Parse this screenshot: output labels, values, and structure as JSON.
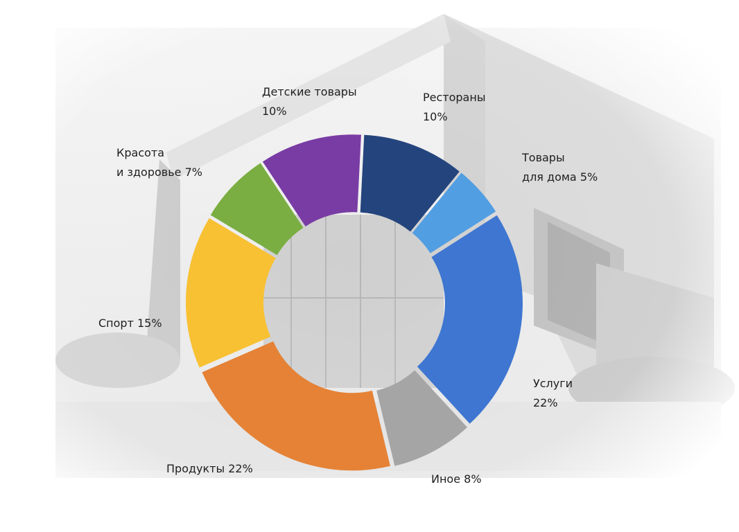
{
  "chart_data": {
    "type": "donut",
    "series": [
      {
        "category": "Рестораны",
        "value": 10,
        "color": "#24447d"
      },
      {
        "category": "Товары для дома",
        "value": 5,
        "color": "#519ee2"
      },
      {
        "category": "Услуги",
        "value": 22,
        "color": "#3e76d1"
      },
      {
        "category": "Иное",
        "value": 8,
        "color": "#a5a5a5"
      },
      {
        "category": "Продукты",
        "value": 22,
        "color": "#e58236"
      },
      {
        "category": "Спорт",
        "value": 15,
        "color": "#f8c033"
      },
      {
        "category": "Красота и здоровье",
        "value": 7,
        "color": "#7aae42"
      },
      {
        "category": "Детские товары",
        "value": 10,
        "color": "#793ca4"
      }
    ]
  },
  "labels": {
    "restaurants": {
      "line1": "Рестораны",
      "line2": "10%"
    },
    "home_goods": {
      "line1": "Товары",
      "line2": "для дома 5%"
    },
    "services": {
      "line1": "Услуги",
      "line2": "22%"
    },
    "other": {
      "line1": "Иное 8%"
    },
    "groceries": {
      "line1": "Продукты 22%"
    },
    "sport": {
      "line1": "Спорт 15%"
    },
    "beauty": {
      "line1": "Красота",
      "line2": "и здоровье 7%"
    },
    "kids": {
      "line1": "Детские товары",
      "line2": "10%"
    }
  }
}
